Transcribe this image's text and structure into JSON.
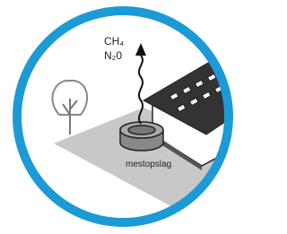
{
  "labels": {
    "gas_top": "CH₄",
    "gas_bottom": "N₂0",
    "storage": "mestopslag"
  }
}
